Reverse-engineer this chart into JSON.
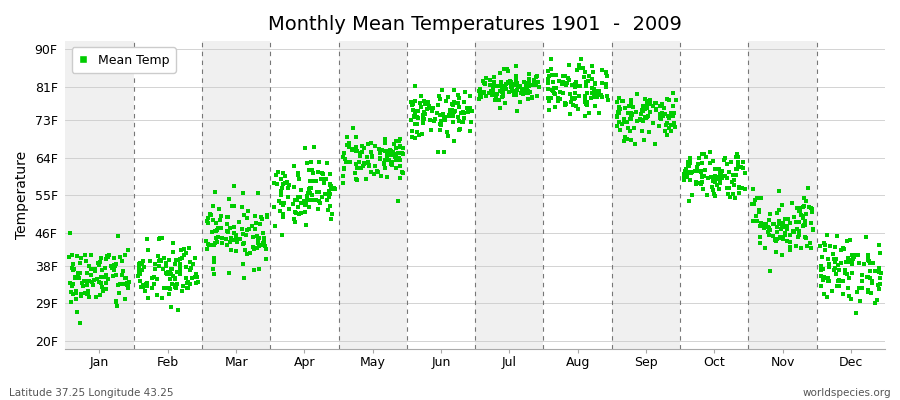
{
  "title": "Monthly Mean Temperatures 1901  -  2009",
  "ylabel": "Temperature",
  "xlabel": "",
  "yticks": [
    20,
    29,
    38,
    46,
    55,
    64,
    73,
    81,
    90
  ],
  "ytick_labels": [
    "20F",
    "29F",
    "38F",
    "46F",
    "55F",
    "64F",
    "73F",
    "81F",
    "90F"
  ],
  "ylim": [
    18,
    92
  ],
  "months": [
    "Jan",
    "Feb",
    "Mar",
    "Apr",
    "May",
    "Jun",
    "Jul",
    "Aug",
    "Sep",
    "Oct",
    "Nov",
    "Dec"
  ],
  "marker_color": "#00cc00",
  "marker": "s",
  "marker_size": 2.5,
  "bg_color": "#ffffff",
  "band_color_odd": "#f0f0f0",
  "band_color_even": "#ffffff",
  "title_fontsize": 14,
  "axis_fontsize": 10,
  "tick_fontsize": 9,
  "legend_label": "Mean Temp",
  "footer_left": "Latitude 37.25 Longitude 43.25",
  "footer_right": "worldspecies.org",
  "n_years": 109,
  "seed": 42,
  "monthly_mean_F": [
    35,
    36,
    46,
    56,
    64,
    74,
    81,
    80,
    74,
    60,
    48,
    37
  ],
  "monthly_std_F": [
    4,
    4,
    4,
    4,
    3,
    3,
    2,
    3,
    3,
    3,
    4,
    4
  ]
}
